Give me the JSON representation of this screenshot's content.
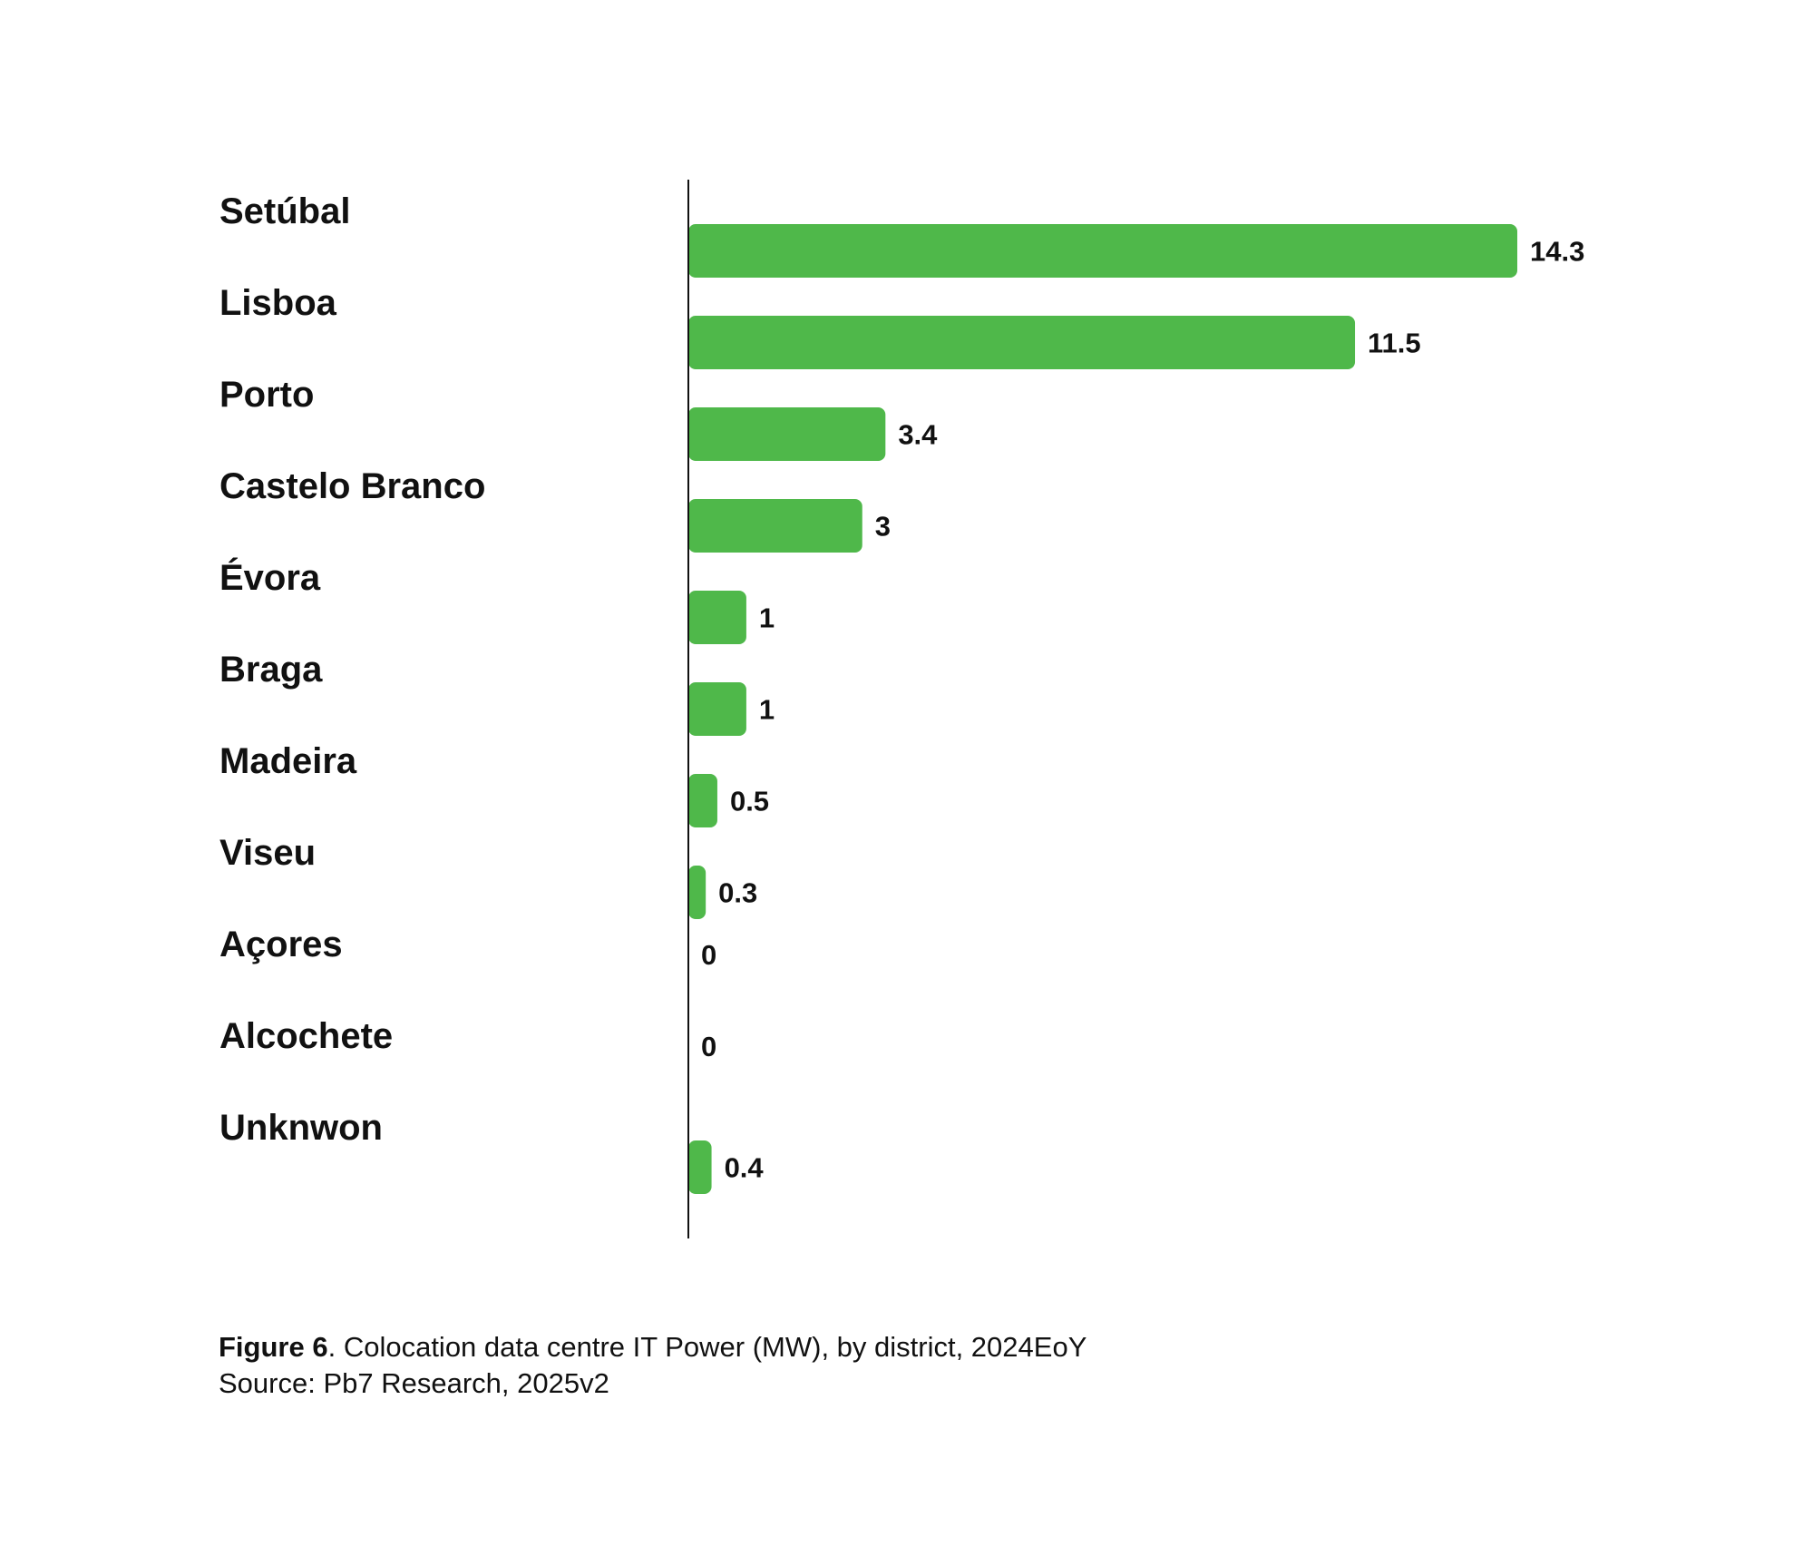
{
  "chart_data": {
    "type": "bar",
    "orientation": "horizontal",
    "categories": [
      "Setúbal",
      "Lisboa",
      "Porto",
      "Castelo Branco",
      "Évora",
      "Braga",
      "Madeira",
      "Viseu",
      "Açores",
      "Alcochete",
      "Unknwon"
    ],
    "values": [
      14.3,
      11.5,
      3.4,
      3,
      1,
      1,
      0.5,
      0.3,
      0,
      0,
      0.4
    ],
    "value_labels": [
      "14.3",
      "11.5",
      "3.4",
      "3",
      "1",
      "1",
      "0.5",
      "0.3",
      "0",
      "0",
      "0.4"
    ],
    "bar_color": "#4fb84a",
    "xlim": [
      0,
      14.3
    ],
    "grid": false,
    "legend": "none"
  },
  "caption": {
    "figure_label": "Figure 6",
    "title_text": ". Colocation data centre IT Power (MW), by district, 2024EoY",
    "source": "Source: Pb7 Research, 2025v2"
  }
}
